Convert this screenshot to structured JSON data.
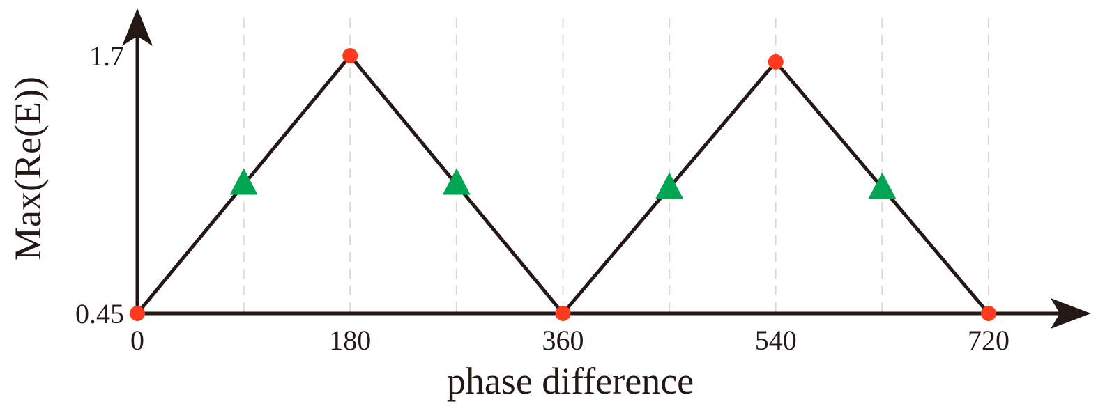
{
  "chart_data": {
    "type": "line",
    "xlabel": "phase difference",
    "ylabel": "Max(Re(E))",
    "x_ticks": [
      "0",
      "180",
      "360",
      "540",
      "720"
    ],
    "y_ticks": [
      "0.45",
      "1.7"
    ],
    "xlim": [
      0,
      780
    ],
    "ylim": [
      0.45,
      1.7
    ],
    "grid": "vertical-dashed",
    "grid_x": [
      90,
      180,
      270,
      360,
      450,
      540,
      630,
      720
    ],
    "line_color": "#231815",
    "grid_color": "#d9d9d9",
    "series": [
      {
        "marker": "circle",
        "color": "#ff3b1f",
        "x": [
          0,
          180,
          360,
          540,
          720
        ],
        "y": [
          0.45,
          1.7,
          0.45,
          1.67,
          0.45
        ]
      },
      {
        "marker": "triangle",
        "color": "#00a651",
        "x": [
          90,
          270,
          450,
          630
        ],
        "y": [
          1.08,
          1.08,
          1.06,
          1.06
        ]
      }
    ],
    "line": {
      "x": [
        0,
        180,
        360,
        540,
        720
      ],
      "y": [
        0.45,
        1.7,
        0.45,
        1.67,
        0.45
      ]
    }
  }
}
